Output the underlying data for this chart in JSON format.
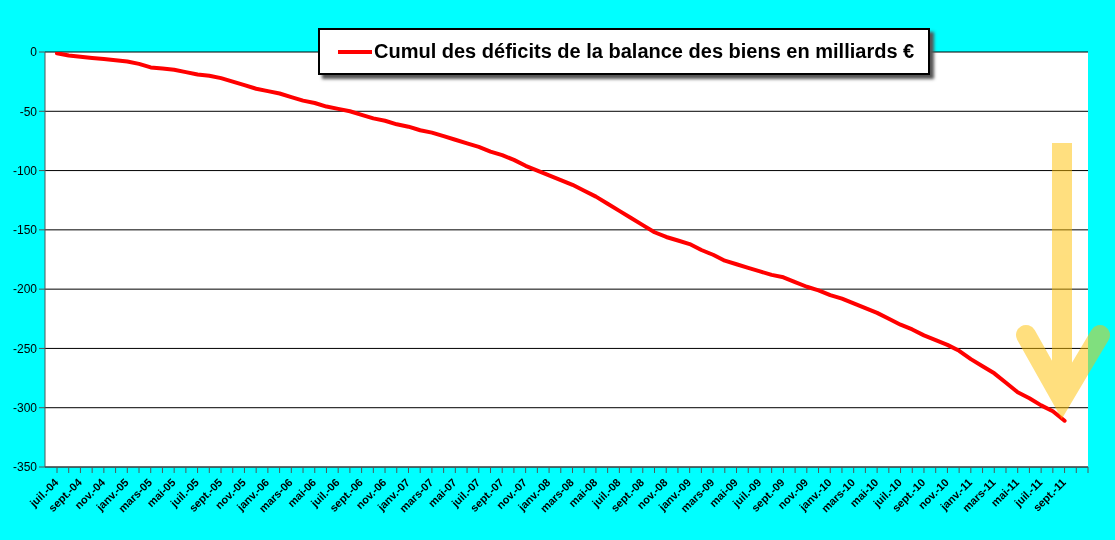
{
  "chart_data": {
    "type": "line",
    "categories": [
      "juil.-04",
      null,
      "sept.-04",
      null,
      "nov.-04",
      null,
      "janv.-05",
      null,
      "mars-05",
      null,
      "mai-05",
      null,
      "juil.-05",
      null,
      "sept.-05",
      null,
      "nov.-05",
      null,
      "janv.-06",
      null,
      "mars-06",
      null,
      "mai-06",
      null,
      "juil.-06",
      null,
      "sept.-06",
      null,
      "nov.-06",
      null,
      "janv.-07",
      null,
      "mars-07",
      null,
      "mai-07",
      null,
      "juil.-07",
      null,
      "sept.-07",
      null,
      "nov.-07",
      null,
      "janv.-08",
      null,
      "mars-08",
      null,
      "mai-08",
      null,
      "juil.-08",
      null,
      "sept.-08",
      null,
      "nov.-08",
      null,
      "janv.-09",
      null,
      "mars-09",
      null,
      "mai-09",
      null,
      "juil.-09",
      null,
      "sept.-09",
      null,
      "nov.-09",
      null,
      "janv.-10",
      null,
      "mars-10",
      null,
      "mai-10",
      null,
      "juil.-10",
      null,
      "sept.-10",
      null,
      "nov.-10",
      null,
      "janv.-11",
      null,
      "mars-11",
      null,
      "mai-11",
      null,
      "juil.-11",
      null,
      "sept.-11",
      null,
      null
    ],
    "series": [
      {
        "name": "Cumul des déficits de la balance des biens en milliards €",
        "color": "#ff0000",
        "values": [
          -1,
          -3,
          -4,
          -5,
          -6,
          -7,
          -8,
          -10,
          -13,
          -14,
          -15,
          -17,
          -19,
          -20,
          -22,
          -25,
          -28,
          -31,
          -33,
          -35,
          -38,
          -41,
          -43,
          -46,
          -48,
          -50,
          -53,
          -56,
          -58,
          -61,
          -63,
          -66,
          -68,
          -71,
          -74,
          -77,
          -80,
          -84,
          -87,
          -91,
          -96,
          -100,
          -104,
          -108,
          -112,
          -117,
          -122,
          -128,
          -134,
          -140,
          -146,
          -152,
          -156,
          -159,
          -162,
          -167,
          -171,
          -176,
          -179,
          -182,
          -185,
          -188,
          -190,
          -194,
          -198,
          -201,
          -205,
          -208,
          -212,
          -216,
          -220,
          -225,
          -230,
          -234,
          -239,
          -243,
          -247,
          -252,
          -259,
          -265,
          -271,
          -279,
          -287,
          -292,
          -298,
          -303,
          -311,
          null,
          null
        ]
      }
    ],
    "ylim": [
      -350,
      0
    ],
    "yticks": [
      -350,
      -300,
      -250,
      -200,
      -150,
      -100,
      -50,
      0
    ],
    "grid": "y",
    "legend": "top",
    "line_style": "solid"
  }
}
